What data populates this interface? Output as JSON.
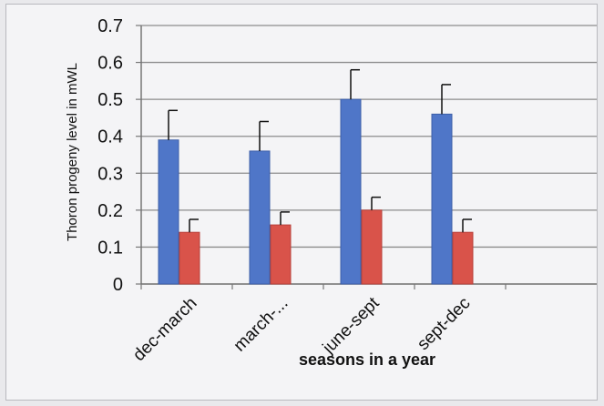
{
  "chart_data": {
    "type": "bar",
    "categories": [
      "dec-march",
      "march-...",
      "june-sept",
      "sept-dec"
    ],
    "series": [
      {
        "values": [
          0.39,
          0.36,
          0.5,
          0.46
        ],
        "errors": [
          0.08,
          0.08,
          0.08,
          0.08
        ],
        "color": "#4f76c8"
      },
      {
        "values": [
          0.14,
          0.16,
          0.2,
          0.14
        ],
        "errors": [
          0.035,
          0.035,
          0.035,
          0.035
        ],
        "color": "#d9534a"
      }
    ],
    "xlabel": "seasons in a year",
    "ylabel": "Thoron progeny level in mWL",
    "ylim": [
      0,
      0.7
    ],
    "yticks": [
      "0",
      "0.1",
      "0.2",
      "0.3",
      "0.4",
      "0.5",
      "0.6",
      "0.7"
    ],
    "grid": true
  }
}
